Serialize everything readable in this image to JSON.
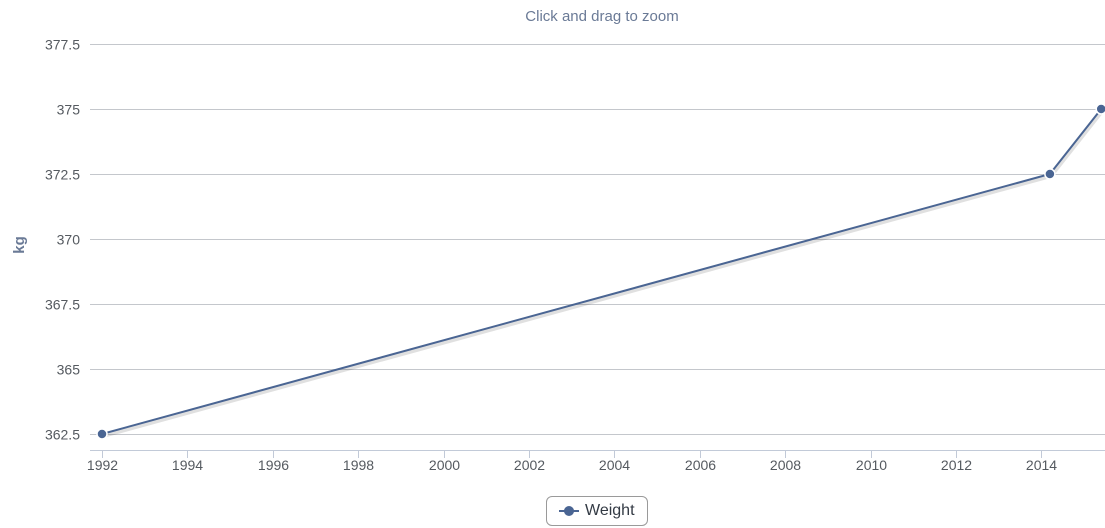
{
  "subtitle": "Click and drag to zoom",
  "legend": {
    "label": "Weight"
  },
  "colors": {
    "series": "#4a6593",
    "grid": "#c4c7cc",
    "axis_title": "#6a7a96"
  },
  "chart_data": {
    "type": "line",
    "title": "",
    "subtitle": "Click and drag to zoom",
    "xlabel": "",
    "ylabel": "kg",
    "x_tick_labels": [
      "1992",
      "1994",
      "1996",
      "1998",
      "2000",
      "2002",
      "2004",
      "2006",
      "2008",
      "2010",
      "2012",
      "2014"
    ],
    "y_tick_labels": [
      "362.5",
      "365",
      "367.5",
      "370",
      "372.5",
      "375",
      "377.5"
    ],
    "y_ticks": [
      362.5,
      365,
      367.5,
      370,
      372.5,
      375,
      377.5
    ],
    "ylim": [
      362.5,
      377.5
    ],
    "xlim": [
      1992,
      2015.45
    ],
    "grid": true,
    "legend_position": "bottom-center",
    "series": [
      {
        "name": "Weight",
        "x": [
          1992.0,
          2014.2,
          2015.4
        ],
        "y": [
          362.5,
          372.5,
          375
        ]
      }
    ]
  }
}
